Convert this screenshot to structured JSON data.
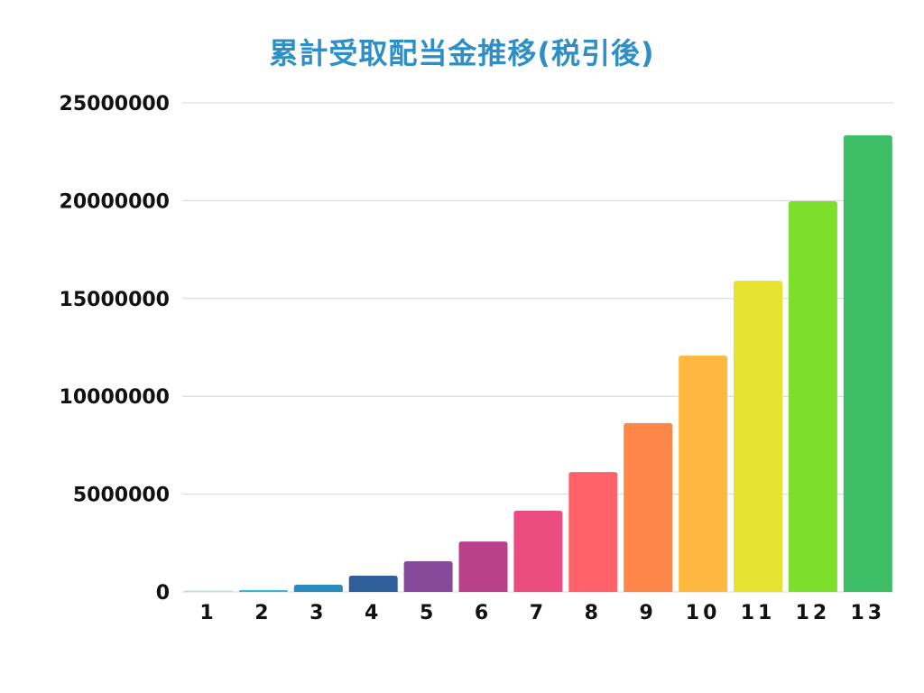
{
  "chart_data": {
    "type": "bar",
    "title": "累計受取配当金推移(税引後)",
    "xlabel": "",
    "ylabel": "",
    "categories": [
      "1",
      "2",
      "3",
      "4",
      "5",
      "6",
      "7",
      "8",
      "9",
      "10",
      "11",
      "12",
      "13"
    ],
    "values": [
      50000,
      100000,
      370000,
      830000,
      1570000,
      2580000,
      4150000,
      6130000,
      8630000,
      12080000,
      15910000,
      19970000,
      23340000
    ],
    "colors": [
      "#b4e2e8",
      "#3db4d8",
      "#2b8bbd",
      "#2e5f9a",
      "#874a9b",
      "#b9418a",
      "#ec4d80",
      "#ff6369",
      "#ff8649",
      "#ffb83f",
      "#e5e230",
      "#7dde2c",
      "#3cbd66"
    ],
    "ylim": [
      0,
      25000000
    ],
    "yticks": [
      "0",
      "5000000",
      "10000000",
      "15000000",
      "20000000",
      "25000000"
    ],
    "grid": true,
    "legend": "none",
    "title_color": "#2e8fc6"
  }
}
